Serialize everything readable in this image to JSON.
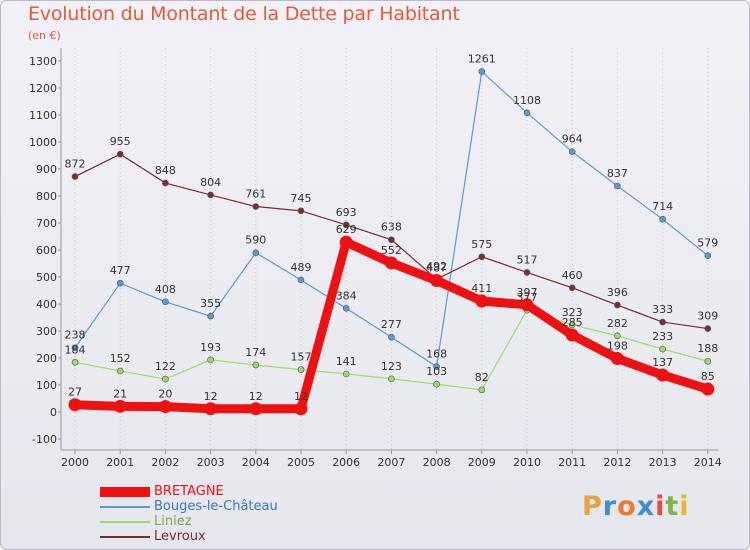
{
  "title": "Evolution du Montant de la Dette par Habitant",
  "unit_label": "(en €)",
  "brand": {
    "letters": [
      "P",
      "r",
      "o",
      "x",
      "i",
      "t",
      "i"
    ],
    "colors": [
      "#e8a23c",
      "#3a8fd0",
      "#f07a2a",
      "#3a8fd0",
      "#e84a3c",
      "#7ab648",
      "#f0b42a"
    ]
  },
  "chart_data": {
    "type": "line",
    "title": "Evolution du Montant de la Dette par Habitant",
    "ylabel": "(en €)",
    "xlabel": "",
    "x": [
      "2000",
      "2001",
      "2002",
      "2003",
      "2004",
      "2005",
      "2006",
      "2007",
      "2008",
      "2009",
      "2010",
      "2011",
      "2012",
      "2013",
      "2014"
    ],
    "ylim": [
      -100,
      1300
    ],
    "yticks": [
      "-100",
      "0",
      "100",
      "200",
      "300",
      "400",
      "500",
      "600",
      "700",
      "800",
      "900",
      "1000",
      "1100",
      "1200",
      "1300"
    ],
    "grid": "vertical dotted",
    "legend_placement": "bottom-left",
    "series": [
      {
        "name": "BRETAGNE",
        "color": "#ee1111",
        "thick": true,
        "values": [
          27,
          21,
          20,
          12,
          12,
          12,
          629,
          552,
          487,
          411,
          397,
          285,
          198,
          137,
          85
        ]
      },
      {
        "name": "Bouges-le-Château",
        "color": "#5b9bd5",
        "thick": false,
        "values": [
          238,
          477,
          408,
          355,
          590,
          489,
          384,
          277,
          168,
          1261,
          1108,
          964,
          837,
          714,
          579
        ]
      },
      {
        "name": "Liniez",
        "color": "#99dd66",
        "thick": false,
        "values": [
          184,
          152,
          122,
          193,
          174,
          157,
          141,
          123,
          103,
          82,
          377,
          323,
          282,
          233,
          188
        ]
      },
      {
        "name": "Levroux",
        "color": "#7b2c2c",
        "thick": false,
        "values": [
          872,
          955,
          848,
          804,
          761,
          745,
          693,
          638,
          492,
          575,
          517,
          460,
          396,
          333,
          309
        ]
      }
    ]
  }
}
